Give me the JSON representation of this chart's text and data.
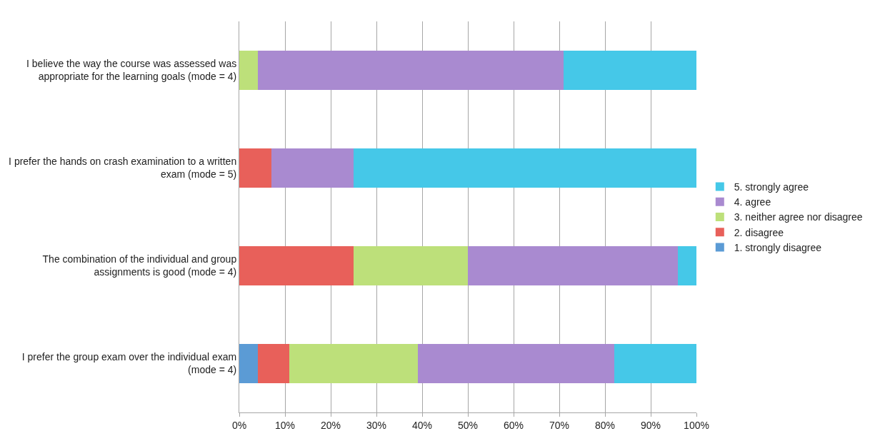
{
  "chart_data": {
    "type": "bar",
    "orientation": "horizontal",
    "stacked": true,
    "categories": [
      "I believe the way the course was assessed was appropriate for the learning goals (mode = 4)",
      "I prefer the hands on crash examination to a written exam (mode = 5)",
      "The combination of the individual and group assignments is good (mode = 4)",
      "I prefer the group exam over the individual exam (mode = 4)"
    ],
    "series": [
      {
        "name": "1. strongly disagree",
        "color": "#5b9bd5",
        "values": [
          0,
          0,
          0,
          4
        ]
      },
      {
        "name": "2. disagree",
        "color": "#e8605a",
        "values": [
          0,
          7,
          25,
          7
        ]
      },
      {
        "name": "3. neither agree nor disagree",
        "color": "#bde07a",
        "values": [
          4,
          0,
          25,
          28
        ]
      },
      {
        "name": "4. agree",
        "color": "#a98ad0",
        "values": [
          67,
          18,
          46,
          43
        ]
      },
      {
        "name": "5. strongly agree",
        "color": "#45c8e8",
        "values": [
          29,
          75,
          4,
          18
        ]
      }
    ],
    "xlim": [
      0,
      100
    ],
    "xticks": [
      {
        "value": 0,
        "label": "0%"
      },
      {
        "value": 10,
        "label": "10%"
      },
      {
        "value": 20,
        "label": "20%"
      },
      {
        "value": 30,
        "label": "30%"
      },
      {
        "value": 40,
        "label": "40%"
      },
      {
        "value": 50,
        "label": "50%"
      },
      {
        "value": 60,
        "label": "60%"
      },
      {
        "value": 70,
        "label": "70%"
      },
      {
        "value": 80,
        "label": "80%"
      },
      {
        "value": 90,
        "label": "90%"
      },
      {
        "value": 100,
        "label": "100%"
      }
    ],
    "grid": "x",
    "legend": "right"
  }
}
